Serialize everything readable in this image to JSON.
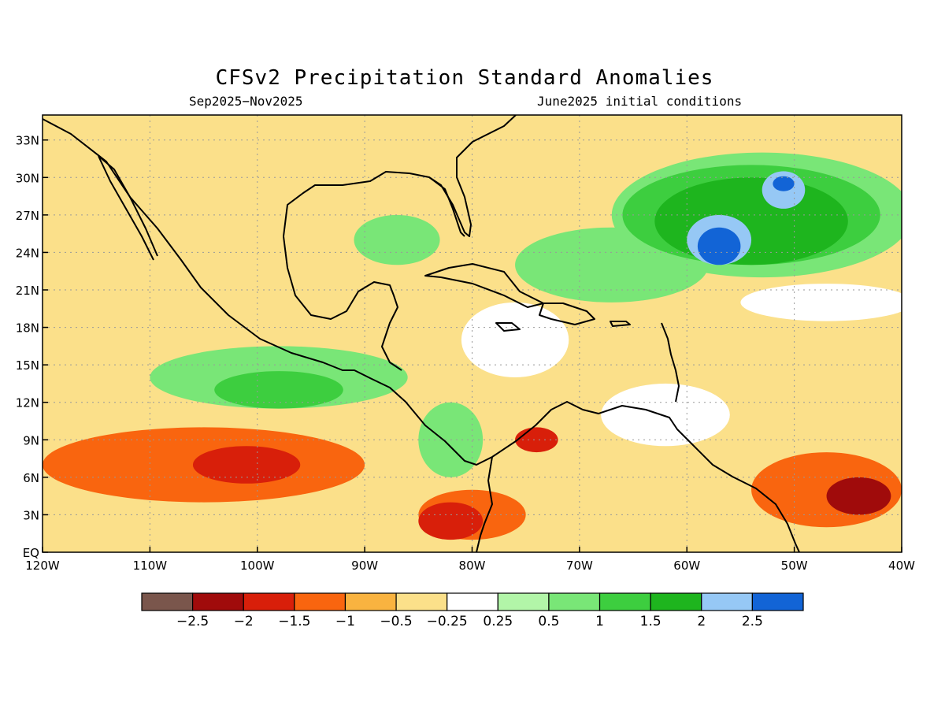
{
  "title": "CFSv2 Precipitation Standard Anomalies",
  "subtitle_left": "Sep2025−Nov2025",
  "subtitle_right": "June2025 initial conditions",
  "map": {
    "lon_range": [
      -120,
      -40
    ],
    "lat_range": [
      0,
      35
    ],
    "lon_ticks": [
      {
        "label": "120W",
        "lon": -120
      },
      {
        "label": "110W",
        "lon": -110
      },
      {
        "label": "100W",
        "lon": -100
      },
      {
        "label": "90W",
        "lon": -90
      },
      {
        "label": "80W",
        "lon": -80
      },
      {
        "label": "70W",
        "lon": -70
      },
      {
        "label": "60W",
        "lon": -60
      },
      {
        "label": "50W",
        "lon": -50
      },
      {
        "label": "40W",
        "lon": -40
      }
    ],
    "lat_ticks": [
      {
        "label": "EQ",
        "lat": 0
      },
      {
        "label": "3N",
        "lat": 3
      },
      {
        "label": "6N",
        "lat": 6
      },
      {
        "label": "9N",
        "lat": 9
      },
      {
        "label": "12N",
        "lat": 12
      },
      {
        "label": "15N",
        "lat": 15
      },
      {
        "label": "18N",
        "lat": 18
      },
      {
        "label": "21N",
        "lat": 21
      },
      {
        "label": "24N",
        "lat": 24
      },
      {
        "label": "27N",
        "lat": 27
      },
      {
        "label": "30N",
        "lat": 30
      },
      {
        "label": "33N",
        "lat": 33
      }
    ],
    "background_color": "#fbe08a",
    "regions": [
      {
        "kind": "above",
        "level": 0.5,
        "lon": -53,
        "lat": 27,
        "rlon": 14,
        "rlat": 5
      },
      {
        "kind": "above",
        "level": 0.5,
        "lon": -67,
        "lat": 23,
        "rlon": 9,
        "rlat": 3
      },
      {
        "kind": "above",
        "level": 0.5,
        "lon": -98,
        "lat": 14,
        "rlon": 12,
        "rlat": 2.5
      },
      {
        "kind": "above",
        "level": 0.5,
        "lon": -82,
        "lat": 9,
        "rlon": 3,
        "rlat": 3
      },
      {
        "kind": "above",
        "level": 0.5,
        "lon": -87,
        "lat": 25,
        "rlon": 4,
        "rlat": 2
      },
      {
        "kind": "above",
        "level": 1,
        "lon": -54,
        "lat": 27,
        "rlon": 12,
        "rlat": 4
      },
      {
        "kind": "above",
        "level": 1,
        "lon": -98,
        "lat": 13,
        "rlon": 6,
        "rlat": 1.5
      },
      {
        "kind": "above",
        "level": 1.5,
        "lon": -54,
        "lat": 26.5,
        "rlon": 9,
        "rlat": 3.5
      },
      {
        "kind": "above",
        "level": 2,
        "lon": -57,
        "lat": 25,
        "rlon": 3,
        "rlat": 2
      },
      {
        "kind": "above",
        "level": 2,
        "lon": -51,
        "lat": 29,
        "rlon": 2,
        "rlat": 1.5
      },
      {
        "kind": "above",
        "level": 2.5,
        "lon": -57,
        "lat": 24.5,
        "rlon": 2,
        "rlat": 1.5
      },
      {
        "kind": "above",
        "level": 2.5,
        "lon": -51,
        "lat": 29.5,
        "rlon": 1,
        "rlat": 0.6
      },
      {
        "kind": "below",
        "level": -1,
        "lon": -105,
        "lat": 7,
        "rlon": 15,
        "rlat": 3
      },
      {
        "kind": "below",
        "level": -1,
        "lon": -47,
        "lat": 5,
        "rlon": 7,
        "rlat": 3
      },
      {
        "kind": "below",
        "level": -1,
        "lon": -80,
        "lat": 3,
        "rlon": 5,
        "rlat": 2
      },
      {
        "kind": "below",
        "level": -1.5,
        "lon": -101,
        "lat": 7,
        "rlon": 5,
        "rlat": 1.5
      },
      {
        "kind": "below",
        "level": -1.5,
        "lon": -82,
        "lat": 2.5,
        "rlon": 3,
        "rlat": 1.5
      },
      {
        "kind": "below",
        "level": -1.5,
        "lon": -74,
        "lat": 9,
        "rlon": 2,
        "rlat": 1
      },
      {
        "kind": "below",
        "level": -2,
        "lon": -44,
        "lat": 4.5,
        "rlon": 3,
        "rlat": 1.5
      },
      {
        "kind": "below",
        "level": -0.25,
        "lon": -76,
        "lat": 17,
        "rlon": 5,
        "rlat": 3
      },
      {
        "kind": "below",
        "level": -0.25,
        "lon": -62,
        "lat": 11,
        "rlon": 6,
        "rlat": 2.5
      },
      {
        "kind": "below",
        "level": -0.25,
        "lon": -47,
        "lat": 20,
        "rlon": 8,
        "rlat": 1.5
      }
    ]
  },
  "colorbar": {
    "colors": [
      "#7a564c",
      "#a00b0b",
      "#d81f0a",
      "#f9650f",
      "#f9b340",
      "#fbe08a",
      "#ffffff",
      "#b2f5a8",
      "#79e677",
      "#3dce3f",
      "#1eb51e",
      "#96c8f5",
      "#1264d6"
    ],
    "labels": [
      "−2.5",
      "−2",
      "−1.5",
      "−1",
      "−0.5",
      "−0.25",
      "0.25",
      "0.5",
      "1",
      "1.5",
      "2",
      "2.5"
    ]
  }
}
